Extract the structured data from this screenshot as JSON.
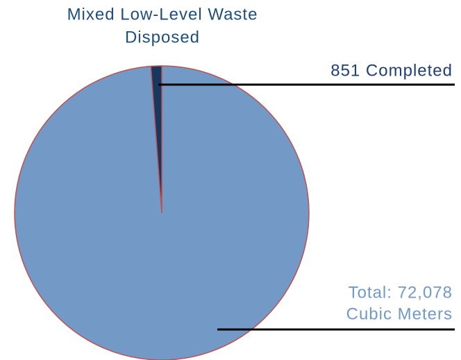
{
  "chart_data": {
    "type": "pie",
    "title": [
      "Mixed Low-Level Waste",
      "Disposed"
    ],
    "completed": {
      "value": 851,
      "label": "851 Completed",
      "color": "#17375e"
    },
    "total": {
      "value": 72078,
      "label": [
        "Total: 72,078",
        "Cubic Meters"
      ],
      "color": "#7399c6"
    },
    "edge_color": "#c0504d"
  }
}
